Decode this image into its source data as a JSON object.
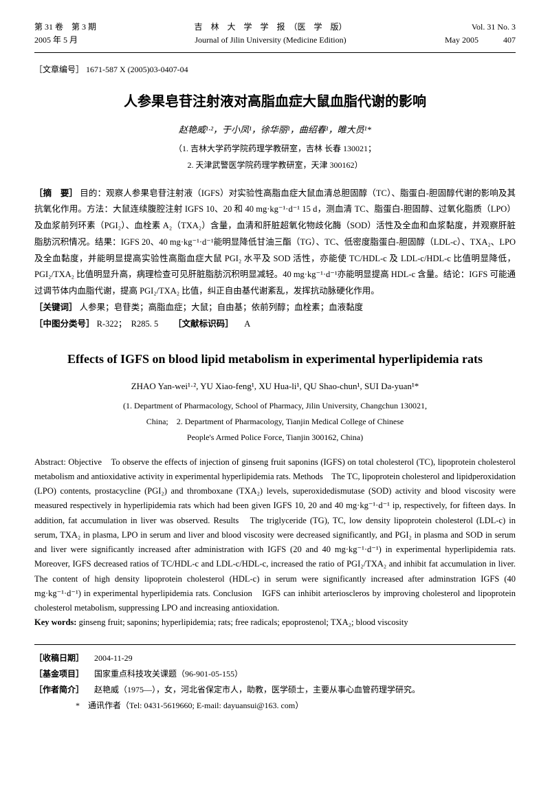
{
  "header": {
    "volume_cn": "第 31 卷　第 3 期",
    "date_cn": "2005 年 5 月",
    "journal_cn": "吉　林　大　学　学　报　（医　学　版）",
    "journal_en": "Journal of Jilin University (Medicine Edition)",
    "volume_en": "Vol. 31  No. 3",
    "date_en": "May 2005",
    "page": "407"
  },
  "article_id_label": "［文章编号］",
  "article_id": "1671-587 X (2005)03-0407-04",
  "title_cn": "人参果皂苷注射液对高脂血症大鼠血脂代谢的影响",
  "authors_cn": "赵艳威¹·²，于小凤¹，徐华丽¹，曲绍春¹，睢大员¹*",
  "affil_cn_1": "（1. 吉林大学药学院药理学教研室，吉林 长春 130021；",
  "affil_cn_2": "2. 天津武警医学院药理学教研室，天津 300162）",
  "abstract_cn": {
    "label": "［摘　要］",
    "text": "目的：观察人参果皂苷注射液（IGFS）对实验性高脂血症大鼠血清总胆固醇（TC）、脂蛋白-胆固醇代谢的影响及其抗氧化作用。方法：大鼠连续腹腔注射 IGFS 10、20 和 40 mg·kg⁻¹·d⁻¹ 15 d，测血清 TC、脂蛋白-胆固醇、过氧化脂质（LPO）及血浆前列环素（PGI₂）、血栓素 A₂（TXA₂）含量，血清和肝脏超氧化物歧化酶（SOD）活性及全血和血浆黏度，并观察肝脏脂肪沉积情况。结果：IGFS 20、40 mg·kg⁻¹·d⁻¹能明显降低甘油三酯（TG）、TC、低密度脂蛋白-胆固醇（LDL-c）、TXA₂、LPO 及全血黏度，并能明显提高实验性高脂血症大鼠 PGI₂ 水平及 SOD 活性，亦能使 TC/HDL-c 及 LDL-c/HDL-c 比值明显降低，PGI₂/TXA₂ 比值明显升高，病理检查可见肝脏脂肪沉积明显减轻。40 mg·kg⁻¹·d⁻¹亦能明显提高 HDL-c 含量。结论：IGFS 可能通过调节体内血脂代谢，提高 PGI₂/TXA₂ 比值，纠正自由基代谢紊乱，发挥抗动脉硬化作用。"
  },
  "keywords_cn_label": "［关键词］",
  "keywords_cn": "人参果；皂苷类；高脂血症；大鼠；自由基；依前列醇；血栓素；血液黏度",
  "class_label": "［中图分类号］",
  "class_value": "R-322；　R285. 5",
  "doc_code_label": "［文献标识码］",
  "doc_code": "A",
  "title_en": "Effects of IGFS on blood lipid metabolism in experimental hyperlipidemia rats",
  "authors_en": "ZHAO Yan-wei¹·², YU Xiao-feng¹, XU Hua-li¹, QU Shao-chun¹, SUI Da-yuan¹*",
  "affil_en_1": "(1. Department of Pharmacology, School of Pharmacy, Jilin University, Changchun 130021,",
  "affil_en_2": "China;　2. Department of Pharmacology, Tianjin Medical College of Chinese",
  "affil_en_3": "People's Armed Police Force, Tianjin 300162, China)",
  "abstract_en": {
    "text": "Abstract: Objective　To observe the effects of injection of ginseng fruit saponins (IGFS) on total cholesterol (TC), lipoprotein cholesterol metabolism and antioxidative activity in experimental hyperlipidemia rats. Methods　The TC, lipoprotein cholesterol and lipidperoxidation (LPO) contents, prostacycline (PGI₂) and thromboxane (TXA₂) levels, superoxidedismutase (SOD) activity and blood viscosity were measured respectively in hyperlipidemia rats which had been given IGFS 10, 20 and 40 mg·kg⁻¹·d⁻¹ ip, respectively, for fifteen days. In addition, fat accumulation in liver was observed. Results　The triglyceride (TG), TC, low density lipoprotein cholesterol (LDL-c) in serum, TXA₂ in plasma, LPO in serum and liver and blood viscosity were decreased significantly, and PGI₂ in plasma and SOD in serum and liver were significantly increased after administration with IGFS (20 and 40 mg·kg⁻¹·d⁻¹) in experimental hyperlipidemia rats. Moreover, IGFS decreased ratios of TC/HDL-c and LDL-c/HDL-c, increased the ratio of PGI₂/TXA₂ and inhibit fat accumulation in liver. The content of high density lipoprotein cholesterol (HDL-c) in serum were significantly increased after adminstration IGFS (40 mg·kg⁻¹·d⁻¹) in experimental hyperlipidemia rats. Conclusion　IGFS can inhibit arterioscleros by improving cholesterol and lipoprotein cholesterol metabolism, suppressing LPO and increasing antioxidation."
  },
  "keywords_en_label": "Key words:",
  "keywords_en": "ginseng fruit; saponins; hyperlipidemia; rats; free radicals; epoprostenol; TXA₂; blood viscosity",
  "footer": {
    "received_label": "［收稿日期］",
    "received": "2004-11-29",
    "fund_label": "［基金项目］",
    "fund": "国家重点科技攻关课题（96-901-05-155）",
    "author_label": "［作者简介］",
    "author": "赵艳威（1975—），女，河北省保定市人，助教，医学硕士，主要从事心血管药理学研究。",
    "corresp": "*　通讯作者（Tel: 0431-5619660; E-mail: dayuansui@163. com）"
  }
}
